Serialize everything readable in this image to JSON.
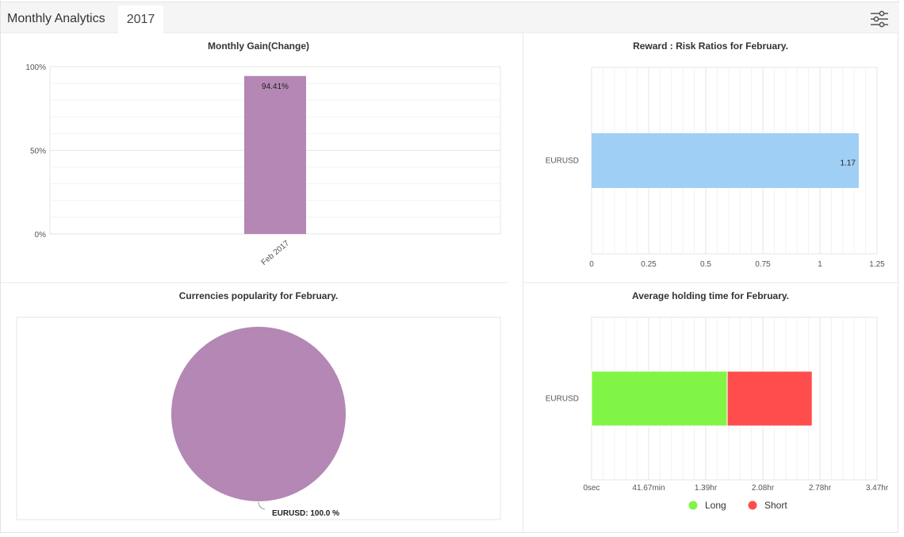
{
  "header": {
    "title": "Monthly Analytics",
    "year_tab": "2017",
    "settings_icon": "sliders-icon"
  },
  "chart_data": [
    {
      "id": "monthly_gain",
      "type": "bar",
      "title": "Monthly Gain(Change)",
      "categories": [
        "Feb 2017"
      ],
      "values": [
        94.41
      ],
      "value_labels": [
        "94.41%"
      ],
      "ylim": [
        0,
        100
      ],
      "y_ticks": [
        "0%",
        "50%",
        "100%"
      ],
      "y_tick_values": [
        0,
        50,
        100
      ],
      "color": "#b487b4",
      "grid": true
    },
    {
      "id": "reward_risk",
      "type": "bar",
      "orientation": "horizontal",
      "title": "Reward : Risk Ratios for February.",
      "categories": [
        "EURUSD"
      ],
      "values": [
        1.17
      ],
      "value_labels": [
        "1.17"
      ],
      "xlim": [
        0,
        1.25
      ],
      "x_ticks": [
        "0",
        "0.25",
        "0.5",
        "0.75",
        "1",
        "1.25"
      ],
      "x_tick_values": [
        0,
        0.25,
        0.5,
        0.75,
        1,
        1.25
      ],
      "color": "#a0cff5",
      "grid": true
    },
    {
      "id": "currencies_popularity",
      "type": "pie",
      "title": "Currencies popularity for February.",
      "slices": [
        {
          "label": "EURUSD",
          "value": 100.0,
          "label_text": "EURUSD: 100.0 %",
          "color": "#b487b4"
        }
      ]
    },
    {
      "id": "avg_holding_time",
      "type": "bar",
      "orientation": "horizontal",
      "stacked": true,
      "title": "Average holding time for February.",
      "categories": [
        "EURUSD"
      ],
      "x_ticks": [
        "0sec",
        "41.67min",
        "1.39hr",
        "2.08hr",
        "2.78hr",
        "3.47hr"
      ],
      "x_tick_values": [
        0,
        41.67,
        83.33,
        125,
        166.67,
        208.33
      ],
      "xlim_minutes": [
        0,
        208.33
      ],
      "series": [
        {
          "name": "Long",
          "values": [
            99
          ],
          "color": "#80f545"
        },
        {
          "name": "Short",
          "values": [
            62
          ],
          "color": "#ff4d4d"
        }
      ],
      "legend_position": "bottom-center",
      "grid": true
    }
  ]
}
